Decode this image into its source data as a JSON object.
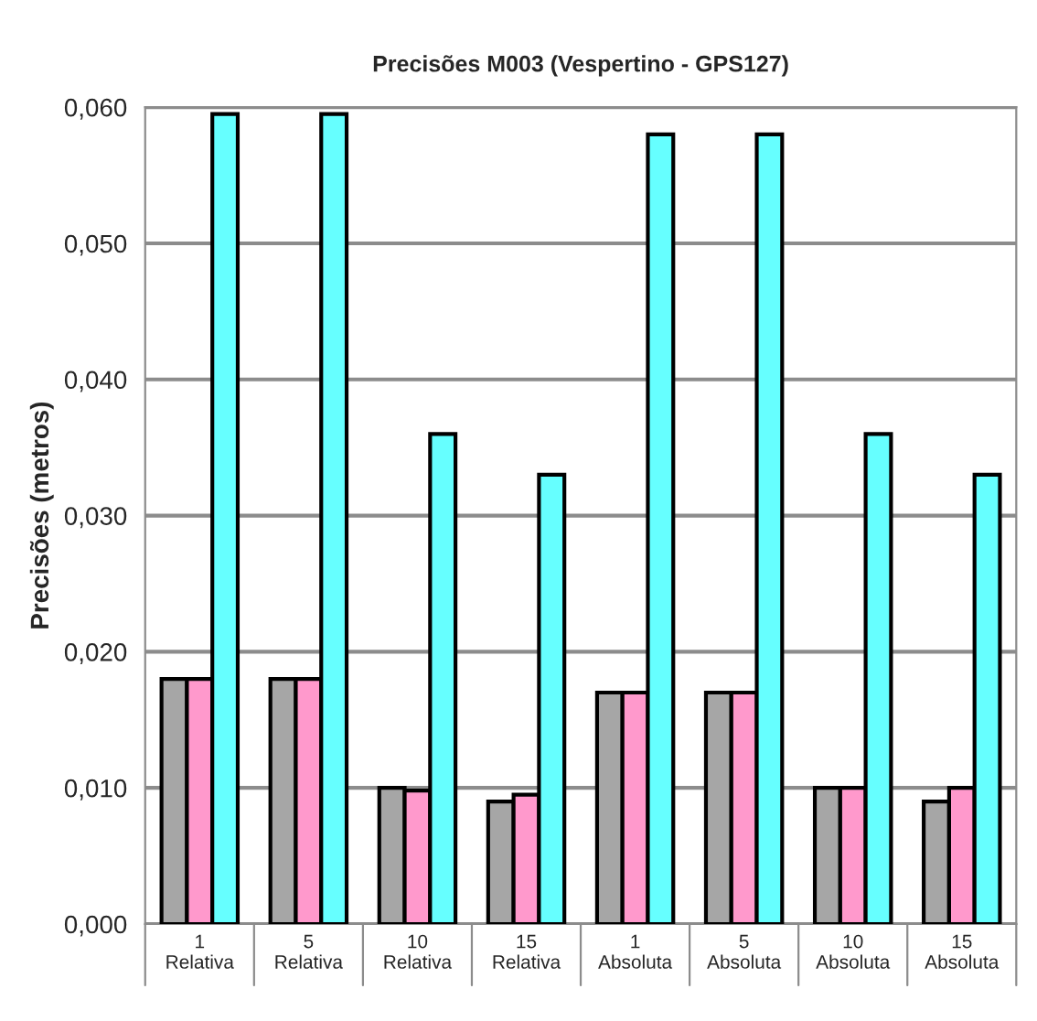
{
  "chart_data": {
    "type": "bar",
    "title": "Precisões M003 (Vespertino - GPS127)",
    "ylabel": "Precisões (metros)",
    "categories": [
      "1\nRelativa",
      "5\nRelativa",
      "10\nRelativa",
      "15\nRelativa",
      "1\nAbsoluta",
      "5\nAbsoluta",
      "10\nAbsoluta",
      "15\nAbsoluta"
    ],
    "series": [
      {
        "color": "#a6a6a6",
        "values": [
          0.018,
          0.018,
          0.01,
          0.009,
          0.017,
          0.017,
          0.01,
          0.009
        ]
      },
      {
        "color": "#ff99cc",
        "values": [
          0.018,
          0.018,
          0.0098,
          0.0095,
          0.017,
          0.017,
          0.01,
          0.01
        ]
      },
      {
        "color": "#66ffff",
        "values": [
          0.0595,
          0.0595,
          0.036,
          0.033,
          0.058,
          0.058,
          0.036,
          0.033
        ]
      }
    ],
    "ylim": [
      0,
      0.06
    ],
    "yticks": [
      {
        "value": 0,
        "label": "0,000"
      },
      {
        "value": 0.01,
        "label": "0,010"
      },
      {
        "value": 0.02,
        "label": "0,020"
      },
      {
        "value": 0.03,
        "label": "0,030"
      },
      {
        "value": 0.04,
        "label": "0,040"
      },
      {
        "value": 0.05,
        "label": "0,050"
      },
      {
        "value": 0.06,
        "label": "0,060"
      }
    ],
    "grid": "y"
  }
}
